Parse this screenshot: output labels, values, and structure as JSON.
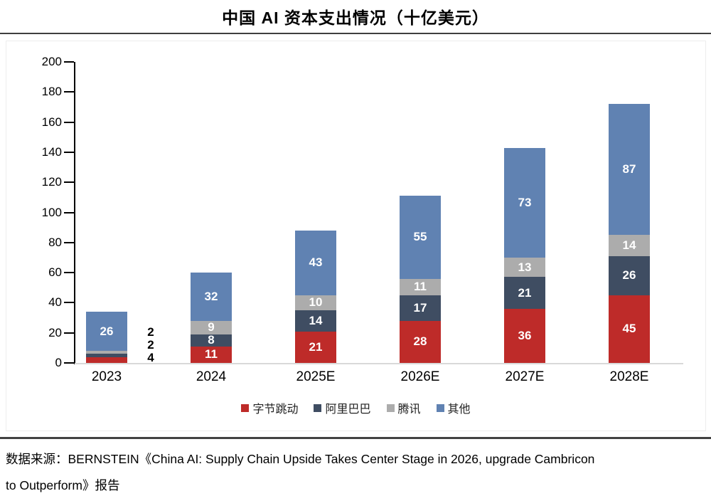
{
  "title": "中国 AI 资本支出情况（十亿美元）",
  "chart_data": {
    "type": "bar",
    "stacked": true,
    "title": "中国 AI 资本支出情况（十亿美元）",
    "categories": [
      "2023",
      "2024",
      "2025E",
      "2026E",
      "2027E",
      "2028E"
    ],
    "series": [
      {
        "name": "字节跳动",
        "color": "#be2b29",
        "values": [
          4,
          11,
          21,
          28,
          36,
          45
        ]
      },
      {
        "name": "阿里巴巴",
        "color": "#3f4d62",
        "values": [
          2,
          8,
          14,
          17,
          21,
          26
        ]
      },
      {
        "name": "腾讯",
        "color": "#acacac",
        "values": [
          2,
          9,
          10,
          11,
          13,
          14
        ]
      },
      {
        "name": "其他",
        "color": "#6082b2",
        "values": [
          26,
          32,
          43,
          55,
          73,
          87
        ]
      }
    ],
    "totals": [
      34,
      60,
      88,
      111,
      143,
      172
    ],
    "ylim": [
      0,
      200
    ],
    "ytick_step": 20,
    "xlabel": "",
    "ylabel": "",
    "grid": false,
    "legend_position": "bottom",
    "data_labels": "inside-white, small 2023 segments labeled outside right in black",
    "axis_color": "#000000",
    "baseline_color": "#d9d9d9"
  },
  "source": {
    "line1": "数据来源：BERNSTEIN《China AI: Supply Chain Upside Takes Center Stage in 2026, upgrade Cambricon",
    "line2": "to Outperform》报告"
  }
}
